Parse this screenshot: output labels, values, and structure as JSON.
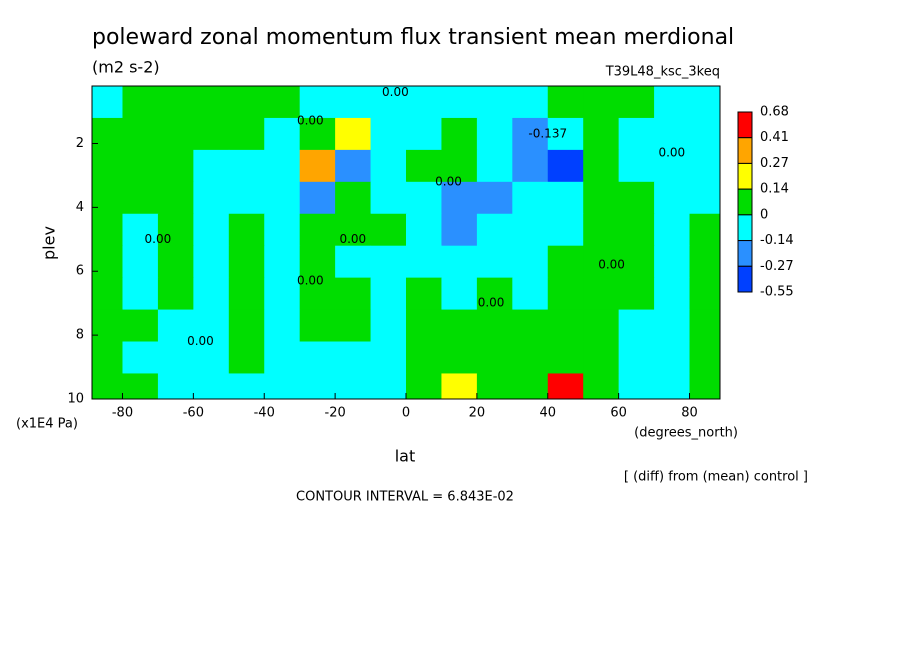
{
  "chart_data": {
    "type": "contour",
    "title": "poleward zonal momentum flux transient mean merdional",
    "subtitle": "(m2 s-2)",
    "run_label": "T39L48_ksc_3keq",
    "xlabel": "lat",
    "x_units": "(degrees_north)",
    "ylabel": "plev",
    "y_units": "(x1E4 Pa)",
    "note": "[ (diff) from (mean) control ]",
    "footer": "CONTOUR INTERVAL = 6.843E-02",
    "xlim": [
      -88.6,
      88.6
    ],
    "xticks": [
      -80,
      -60,
      -40,
      -20,
      0,
      20,
      40,
      60,
      80
    ],
    "ylim": [
      10,
      0.2
    ],
    "yticks": [
      2,
      4,
      6,
      8,
      10
    ],
    "x": [
      -85,
      -75,
      -65,
      -55,
      -45,
      -35,
      -25,
      -15,
      -5,
      5,
      15,
      25,
      35,
      45,
      55,
      65,
      75,
      85
    ],
    "y": [
      0.7,
      1.7,
      2.7,
      3.7,
      4.7,
      5.7,
      6.7,
      7.7,
      8.7,
      9.7
    ],
    "z": [
      [
        -0.07,
        0.07,
        0.07,
        0.07,
        0.07,
        0.07,
        -0.07,
        -0.07,
        -0.07,
        -0.07,
        -0.07,
        -0.07,
        -0.07,
        0.07,
        0.07,
        0.07,
        -0.07,
        -0.07
      ],
      [
        0.07,
        0.07,
        0.07,
        0.07,
        0.07,
        -0.07,
        0.07,
        0.2,
        -0.07,
        -0.07,
        0.07,
        -0.07,
        -0.2,
        -0.07,
        0.07,
        -0.07,
        -0.07,
        -0.07
      ],
      [
        0.07,
        0.07,
        0.07,
        -0.07,
        -0.07,
        -0.07,
        0.34,
        -0.2,
        -0.07,
        0.07,
        0.07,
        -0.07,
        -0.2,
        -0.4,
        0.07,
        -0.07,
        -0.07,
        -0.07
      ],
      [
        0.07,
        0.07,
        0.07,
        -0.07,
        -0.07,
        -0.07,
        -0.2,
        0.07,
        -0.07,
        -0.07,
        -0.2,
        -0.2,
        -0.07,
        -0.07,
        0.07,
        0.07,
        -0.07,
        -0.07
      ],
      [
        0.07,
        -0.07,
        0.07,
        -0.07,
        0.07,
        -0.07,
        0.07,
        0.07,
        0.07,
        -0.07,
        -0.2,
        -0.07,
        -0.07,
        -0.07,
        0.07,
        0.07,
        -0.07,
        0.07
      ],
      [
        0.07,
        -0.07,
        0.07,
        -0.07,
        0.07,
        -0.07,
        0.07,
        -0.07,
        -0.07,
        -0.07,
        -0.07,
        -0.07,
        -0.07,
        0.07,
        0.07,
        0.07,
        -0.07,
        0.07
      ],
      [
        0.07,
        -0.07,
        0.07,
        -0.07,
        0.07,
        -0.07,
        0.07,
        0.07,
        -0.07,
        0.07,
        -0.07,
        0.07,
        -0.07,
        0.07,
        0.07,
        0.07,
        -0.07,
        0.07
      ],
      [
        0.07,
        0.07,
        -0.07,
        -0.07,
        0.07,
        -0.07,
        0.07,
        0.07,
        -0.07,
        0.07,
        0.07,
        0.07,
        0.07,
        0.07,
        0.07,
        -0.07,
        -0.07,
        0.07
      ],
      [
        0.07,
        -0.07,
        -0.07,
        -0.07,
        0.07,
        -0.07,
        -0.07,
        -0.07,
        -0.07,
        0.07,
        0.07,
        0.07,
        0.07,
        0.07,
        0.07,
        -0.07,
        -0.07,
        0.07
      ],
      [
        0.07,
        0.07,
        -0.07,
        -0.07,
        -0.07,
        -0.07,
        -0.07,
        -0.07,
        -0.07,
        0.07,
        0.2,
        0.07,
        0.07,
        0.5,
        0.07,
        -0.07,
        -0.07,
        0.07
      ]
    ],
    "levels": [
      0.68,
      0.41,
      0.27,
      0.14,
      0,
      -0.14,
      -0.27,
      -0.55
    ],
    "colors": [
      "#ff0000",
      "#ffa500",
      "#ffff00",
      "#00dd00",
      "#00ffff",
      "#2a90ff",
      "#0040ff"
    ],
    "contour_labels": [
      {
        "text": "0.00",
        "x": -70,
        "y": 5
      },
      {
        "text": "0.00",
        "x": -58,
        "y": 8.2
      },
      {
        "text": "0.00",
        "x": -27,
        "y": 1.3
      },
      {
        "text": "0.00",
        "x": -3,
        "y": 0.4
      },
      {
        "text": "0.00",
        "x": 12,
        "y": 3.2
      },
      {
        "text": "-0.137",
        "x": 40,
        "y": 1.7
      },
      {
        "text": "0.00",
        "x": 75,
        "y": 2.3
      },
      {
        "text": "0.00",
        "x": 58,
        "y": 5.8
      },
      {
        "text": "0.00",
        "x": 24,
        "y": 7
      },
      {
        "text": "0.00",
        "x": -27,
        "y": 6.3
      },
      {
        "text": "0.00",
        "x": -15,
        "y": 5
      }
    ]
  }
}
